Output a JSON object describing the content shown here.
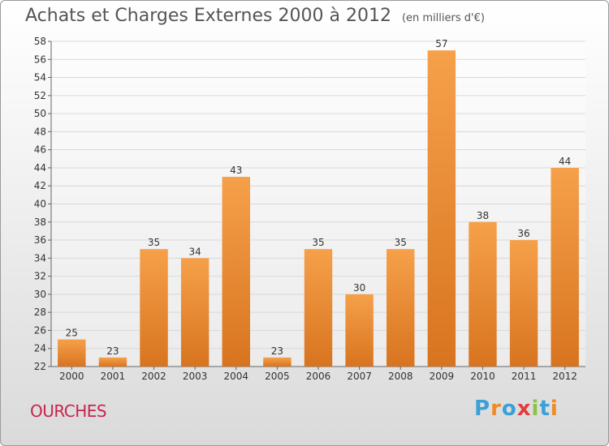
{
  "header": {
    "title": "Achats et Charges Externes 2000 à 2012",
    "subtitle": "(en milliers d'€)"
  },
  "footer": {
    "city": "OURCHES",
    "logo": "Proxiti"
  },
  "colors": {
    "bar_light": "#f6a04a",
    "bar_dark": "#d8741f",
    "grid": "#d9d9d9",
    "axis_text": "#333333",
    "city": "#c7254e",
    "logo_letters": [
      "#3aa0d8",
      "#f08a24",
      "#3aa0d8",
      "#e23c3c",
      "#8bc34a",
      "#3aa0d8",
      "#f08a24"
    ]
  },
  "chart_data": {
    "type": "bar",
    "title": "Achats et Charges Externes 2000 à 2012",
    "subtitle": "(en milliers d'€)",
    "xlabel": "",
    "ylabel": "",
    "categories": [
      "2000",
      "2001",
      "2002",
      "2003",
      "2004",
      "2005",
      "2006",
      "2007",
      "2008",
      "2009",
      "2010",
      "2011",
      "2012"
    ],
    "values": [
      25,
      23,
      35,
      34,
      43,
      23,
      35,
      30,
      35,
      57,
      38,
      36,
      44
    ],
    "ylim": [
      22,
      58
    ],
    "yticks": [
      22,
      24,
      26,
      28,
      30,
      32,
      34,
      36,
      38,
      40,
      42,
      44,
      46,
      48,
      50,
      52,
      54,
      56,
      58
    ],
    "grid": true,
    "legend": "none"
  }
}
